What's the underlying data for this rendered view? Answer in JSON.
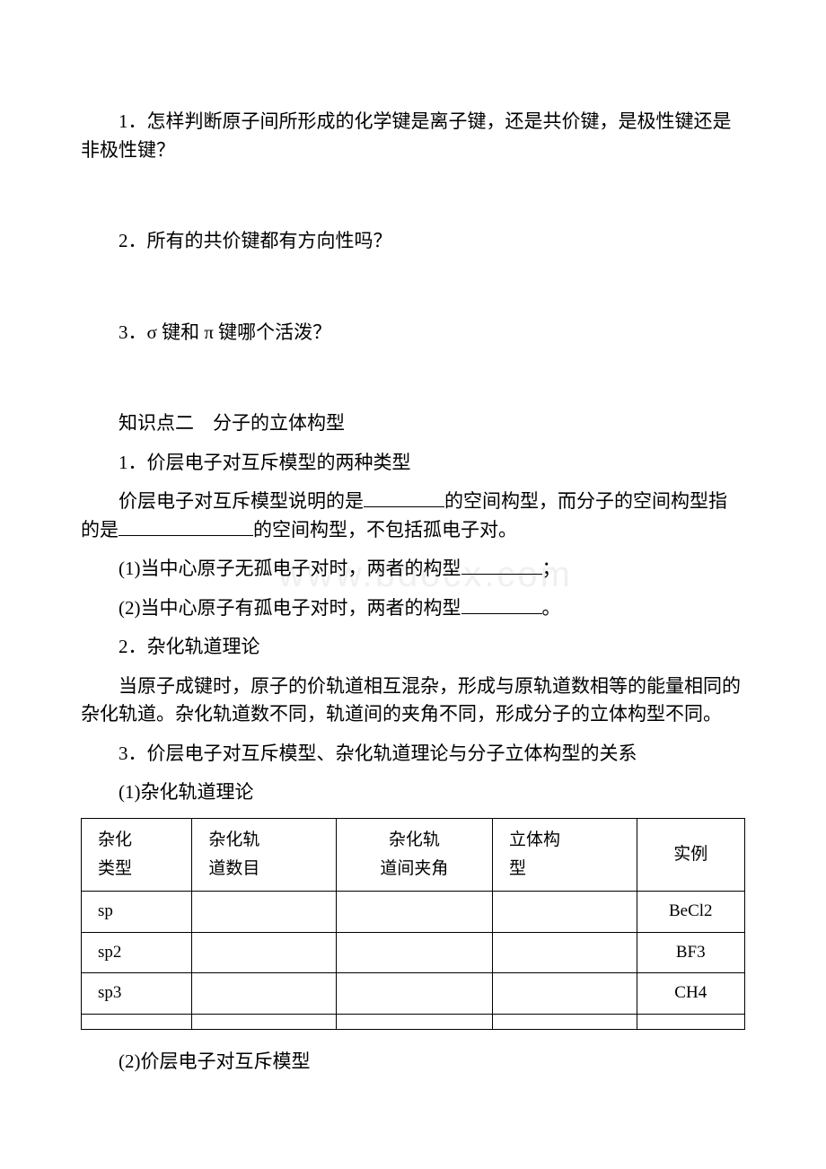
{
  "watermark": "www.bdocx.com",
  "q1": "1．怎样判断原子间所形成的化学键是离子键，还是共价键，是极性键还是非极性键？",
  "q2": "2．所有的共价键都有方向性吗？",
  "q3": "3．σ 键和 π 键哪个活泼？",
  "kp2_title": "知识点二　分子的立体构型",
  "s1_title": "1．价层电子对互斥模型的两种类型",
  "s1_intro_a": "价层电子对互斥模型说明的是",
  "s1_intro_b": "的空间构型，而分子的空间构型指的是",
  "s1_intro_c": "的空间构型，不包括孤电子对。",
  "s1_1a": "(1)当中心原子无孤电子对时，两者的构型",
  "s1_1b": "；",
  "s1_2a": "(2)当中心原子有孤电子对时，两者的构型",
  "s1_2b": "。",
  "s2_title": "2．杂化轨道理论",
  "s2_body": "当原子成键时，原子的价轨道相互混杂，形成与原轨道数相等的能量相同的杂化轨道。杂化轨道数不同，轨道间的夹角不同，形成分子的立体构型不同。",
  "s3_title": "3．价层电子对互斥模型、杂化轨道理论与分子立体构型的关系",
  "s3_sub1": "(1)杂化轨道理论",
  "table": {
    "headers": [
      "杂化\n类型",
      "杂化轨\n道数目",
      "杂化轨\n道间夹角",
      "立体构\n型",
      "实例"
    ],
    "rows": [
      [
        "sp",
        "",
        "",
        "",
        "BeCl2"
      ],
      [
        "sp2",
        "",
        "",
        "",
        "BF3"
      ],
      [
        "sp3",
        "",
        "",
        "",
        "CH4"
      ],
      [
        "",
        "",
        "",
        "",
        ""
      ]
    ]
  },
  "s3_sub2": "(2)价层电子对互斥模型"
}
